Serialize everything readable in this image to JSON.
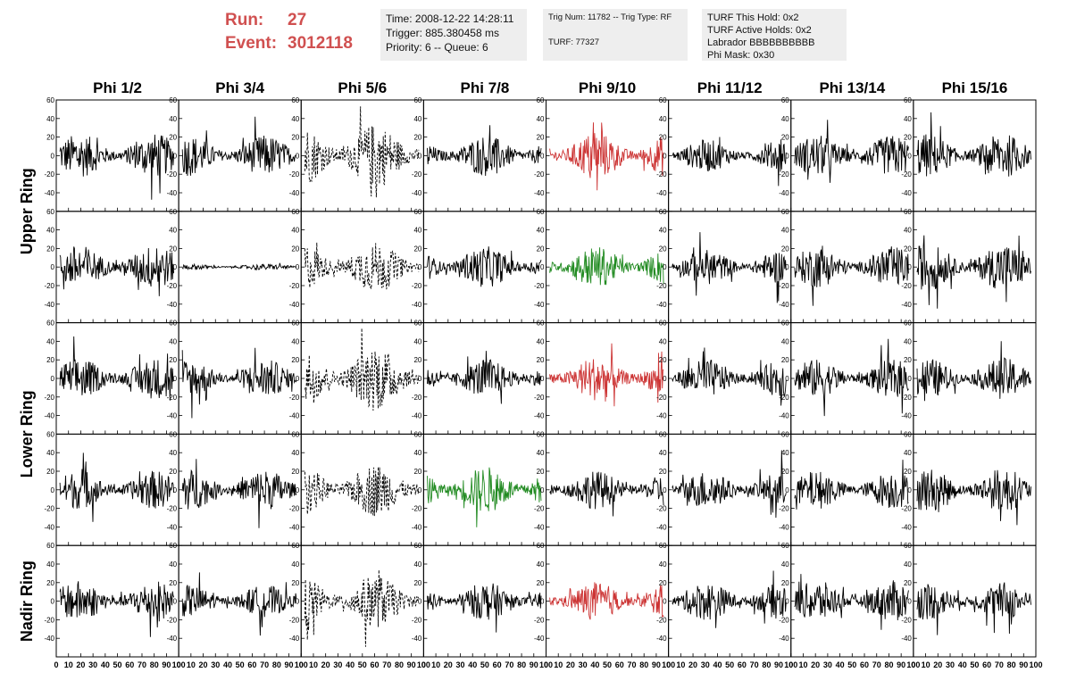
{
  "header": {
    "run_label": "Run:",
    "run_value": "27",
    "event_label": "Event:",
    "event_value": "3012118",
    "time_box": [
      "Time: 2008-12-22 14:28:11",
      "Trigger: 885.380458 ms",
      "Priority: 6 -- Queue: 6"
    ],
    "trig_box": [
      "Trig Num: 11782 -- Trig Type: RF",
      "TURF: 77327"
    ],
    "turf_box": [
      "TURF This Hold: 0x2",
      "TURF Active Holds: 0x2",
      "Labrador BBBBBBBBBB",
      "Phi Mask: 0x30"
    ]
  },
  "chart_data": {
    "type": "line",
    "columns": [
      "Phi 1/2",
      "Phi 3/4",
      "Phi 5/6",
      "Phi 7/8",
      "Phi 9/10",
      "Phi 11/12",
      "Phi 13/14",
      "Phi 15/16"
    ],
    "ring_labels": [
      {
        "text": "Upper Ring",
        "spans_rows": [
          0,
          1
        ]
      },
      {
        "text": "Lower Ring",
        "spans_rows": [
          2,
          3
        ]
      },
      {
        "text": "Nadir Ring",
        "spans_rows": [
          4,
          4
        ]
      }
    ],
    "xlim": [
      0,
      100
    ],
    "ylim": [
      -60,
      60
    ],
    "xticks": [
      0,
      10,
      20,
      30,
      40,
      50,
      60,
      70,
      80,
      90,
      100
    ],
    "yticks": [
      -40,
      -20,
      0,
      20,
      40,
      60
    ],
    "colors": {
      "normal": "#000000",
      "red": "#cc3333",
      "green": "#228B22"
    },
    "panels": [
      [
        {
          "style": "solid",
          "color": "normal",
          "amp": 15
        },
        {
          "style": "solid",
          "color": "normal",
          "amp": 14
        },
        {
          "style": "dashed",
          "color": "normal",
          "amp": 22
        },
        {
          "style": "solid",
          "color": "normal",
          "amp": 14
        },
        {
          "style": "solid",
          "color": "red",
          "amp": 16
        },
        {
          "style": "solid",
          "color": "normal",
          "amp": 11
        },
        {
          "style": "solid",
          "color": "normal",
          "amp": 14
        },
        {
          "style": "solid",
          "color": "normal",
          "amp": 15
        }
      ],
      [
        {
          "style": "solid",
          "color": "normal",
          "amp": 15
        },
        {
          "style": "solid",
          "color": "normal",
          "amp": 2
        },
        {
          "style": "dashed",
          "color": "normal",
          "amp": 17
        },
        {
          "style": "solid",
          "color": "normal",
          "amp": 14
        },
        {
          "style": "solid",
          "color": "green",
          "amp": 14
        },
        {
          "style": "solid",
          "color": "normal",
          "amp": 12
        },
        {
          "style": "solid",
          "color": "normal",
          "amp": 14
        },
        {
          "style": "solid",
          "color": "normal",
          "amp": 16
        }
      ],
      [
        {
          "style": "solid",
          "color": "normal",
          "amp": 14
        },
        {
          "style": "solid",
          "color": "normal",
          "amp": 13
        },
        {
          "style": "dashed",
          "color": "normal",
          "amp": 22
        },
        {
          "style": "solid",
          "color": "normal",
          "amp": 13
        },
        {
          "style": "solid",
          "color": "red",
          "amp": 15
        },
        {
          "style": "solid",
          "color": "normal",
          "amp": 13
        },
        {
          "style": "solid",
          "color": "normal",
          "amp": 13
        },
        {
          "style": "solid",
          "color": "normal",
          "amp": 14
        }
      ],
      [
        {
          "style": "solid",
          "color": "normal",
          "amp": 13
        },
        {
          "style": "solid",
          "color": "normal",
          "amp": 14
        },
        {
          "style": "dashed",
          "color": "normal",
          "amp": 18
        },
        {
          "style": "solid",
          "color": "green",
          "amp": 16
        },
        {
          "style": "solid",
          "color": "normal",
          "amp": 13
        },
        {
          "style": "solid",
          "color": "normal",
          "amp": 13
        },
        {
          "style": "solid",
          "color": "normal",
          "amp": 13
        },
        {
          "style": "solid",
          "color": "normal",
          "amp": 15
        }
      ],
      [
        {
          "style": "solid",
          "color": "normal",
          "amp": 14
        },
        {
          "style": "solid",
          "color": "normal",
          "amp": 11
        },
        {
          "style": "dashed",
          "color": "normal",
          "amp": 18
        },
        {
          "style": "solid",
          "color": "normal",
          "amp": 13
        },
        {
          "style": "solid",
          "color": "red",
          "amp": 13
        },
        {
          "style": "solid",
          "color": "normal",
          "amp": 13
        },
        {
          "style": "solid",
          "color": "normal",
          "amp": 14
        },
        {
          "style": "solid",
          "color": "normal",
          "amp": 13
        }
      ]
    ]
  }
}
